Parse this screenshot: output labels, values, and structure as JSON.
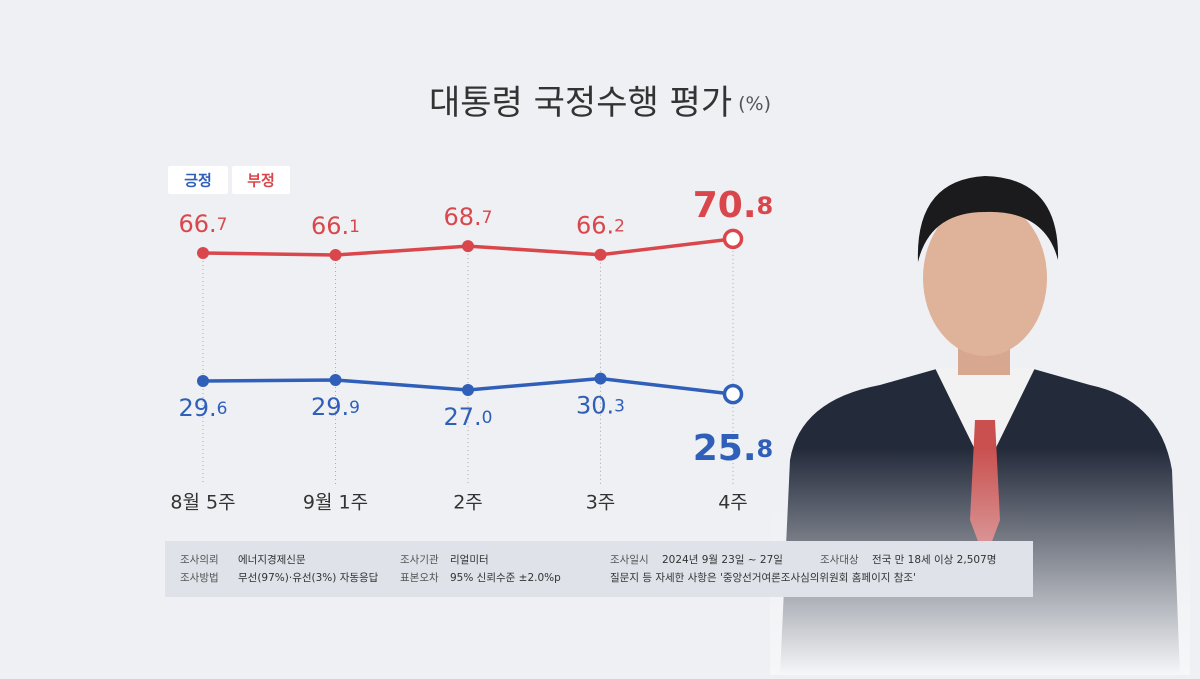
{
  "chart_data": {
    "type": "line",
    "title": "대통령 국정수행 평가",
    "subtitle": "(%)",
    "categories": [
      "8월 5주",
      "9월 1주",
      "2주",
      "3주",
      "4주"
    ],
    "series": [
      {
        "name": "긍정",
        "color": "#2f5fb8",
        "values": [
          29.6,
          29.9,
          27.0,
          30.3,
          25.8
        ],
        "value_labels": [
          "29.6",
          "29.9",
          "27.0",
          "30.3",
          "25.8"
        ]
      },
      {
        "name": "부정",
        "color": "#d9474c",
        "values": [
          66.7,
          66.1,
          68.7,
          66.2,
          70.8
        ],
        "value_labels": [
          "66.7",
          "66.1",
          "68.7",
          "66.2",
          "70.8"
        ]
      }
    ]
  },
  "survey_info": {
    "items": [
      {
        "label": "조사의뢰",
        "value": "에너지경제신문"
      },
      {
        "label": "조사기관",
        "value": "리얼미터"
      },
      {
        "label": "조사일시",
        "value": "2024년 9월 23일 ~ 27일"
      },
      {
        "label": "조사대상",
        "value": "전국 만 18세 이상 2,507명"
      },
      {
        "label": "조사방법",
        "value": "무선(97%)·유선(3%) 자동응답"
      },
      {
        "label": "표본오차",
        "value": "95% 신뢰수준 ±2.0%p"
      }
    ],
    "note": "질문지 등 자세한 사항은 '중앙선거여론조사심의위원회 홈페이지 참조'"
  }
}
